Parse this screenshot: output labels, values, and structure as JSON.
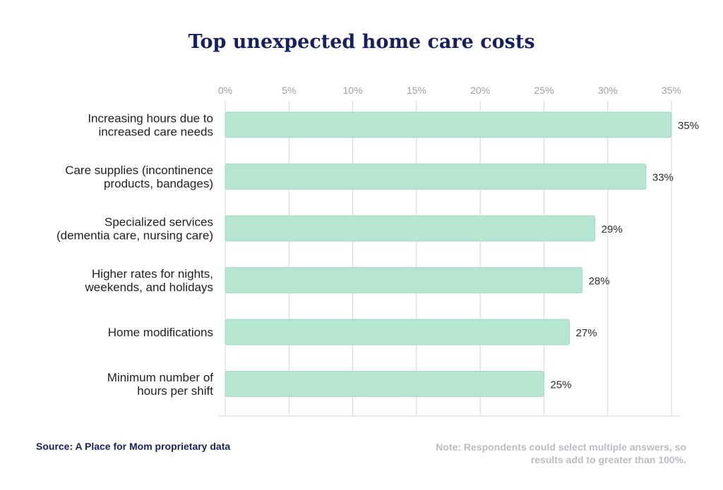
{
  "chart_data": {
    "type": "bar",
    "orientation": "horizontal",
    "title": "Top unexpected home care costs",
    "categories": [
      [
        "Increasing hours due to",
        "increased care needs"
      ],
      [
        "Care supplies (incontinence",
        "products, bandages)"
      ],
      [
        "Specialized services",
        "(dementia care, nursing care)"
      ],
      [
        "Higher rates for nights,",
        "weekends, and holidays"
      ],
      [
        "Home modifications"
      ],
      [
        "Minimum number of",
        "hours per shift"
      ]
    ],
    "values": [
      35,
      33,
      29,
      28,
      27,
      25
    ],
    "value_labels": [
      "35%",
      "33%",
      "29%",
      "28%",
      "27%",
      "25%"
    ],
    "xlim": [
      0,
      35
    ],
    "xticks": [
      0,
      5,
      10,
      15,
      20,
      25,
      30,
      35
    ],
    "xtick_labels": [
      "0%",
      "5%",
      "10%",
      "15%",
      "20%",
      "25%",
      "30%",
      "35%"
    ],
    "x_axis_position": "top",
    "grid": true,
    "bar_color": "#b6e5d1",
    "bar_edge_color": "#a3d9c2",
    "source": "Source: A Place for Mom proprietary data",
    "note": "Note: Respondents could select multiple answers, so results add to greater than 100%."
  }
}
